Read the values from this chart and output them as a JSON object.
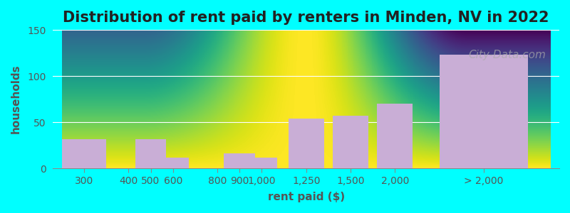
{
  "title": "Distribution of rent paid by renters in Minden, NV in 2022",
  "xlabel": "rent paid ($)",
  "ylabel": "households",
  "background_color": "#00ffff",
  "plot_bg_gradient_top": "#e8f5e2",
  "plot_bg_gradient_bottom": "#f5f5f5",
  "bar_color": "#c9aed6",
  "bar_color_green": "#c8e6c4",
  "ylim": [
    0,
    150
  ],
  "yticks": [
    0,
    50,
    100,
    150
  ],
  "categories": [
    "300",
    "400",
    "500",
    "600",
    "800",
    "900",
    "1,000",
    "1,250",
    "1,500",
    "2,000",
    "> 2,000"
  ],
  "values": [
    32,
    0,
    32,
    12,
    0,
    16,
    12,
    54,
    57,
    70,
    123
  ],
  "bar_widths": [
    1,
    1,
    1,
    1,
    1,
    1,
    1,
    1,
    1,
    1,
    3
  ],
  "green_indices": [
    1,
    4
  ],
  "title_fontsize": 15,
  "axis_label_fontsize": 11,
  "tick_fontsize": 10,
  "watermark_text": "City-Data.com"
}
